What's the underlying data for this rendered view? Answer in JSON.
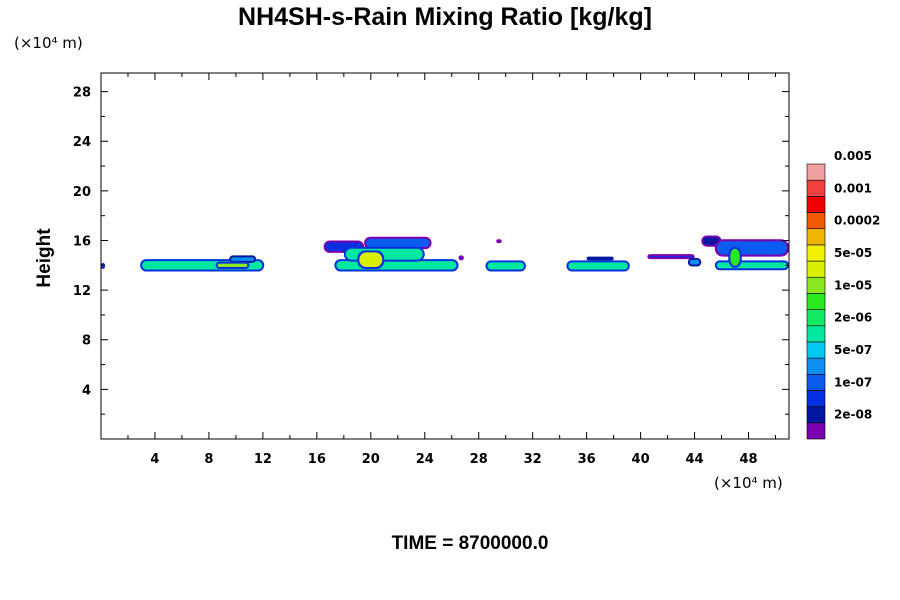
{
  "chart_data": {
    "type": "heatmap",
    "title": "NH4SH-s-Rain Mixing Ratio [kg/kg]",
    "xlabel": "",
    "ylabel": "Height",
    "x_unit": "(×10⁴ m)",
    "y_unit": "(×10⁴ m)",
    "xlim": [
      0,
      51
    ],
    "ylim": [
      0,
      29.5
    ],
    "x_ticks": [
      4,
      8,
      12,
      16,
      20,
      24,
      28,
      32,
      36,
      40,
      44,
      48
    ],
    "y_ticks": [
      4,
      8,
      12,
      16,
      20,
      24,
      28
    ],
    "grid": false,
    "colorbar": {
      "placement": "right",
      "colors": [
        "#7a00b0",
        "#0018a0",
        "#0030e0",
        "#0a5cf0",
        "#0a8ef0",
        "#00c8f0",
        "#00e8a0",
        "#14e864",
        "#28e81e",
        "#8ce81e",
        "#d8f000",
        "#f0f000",
        "#f0b400",
        "#f05a00",
        "#f00000",
        "#f04040",
        "#f0a0a0"
      ],
      "labels": [
        "2e-08",
        "1e-07",
        "5e-07",
        "2e-06",
        "1e-05",
        "5e-05",
        "0.0002",
        "0.001",
        "0.005"
      ]
    },
    "regions": [
      {
        "x": [
          0,
          0.3
        ],
        "y": [
          13.7,
          14.2
        ],
        "level": 6
      },
      {
        "x": [
          2.9,
          12.1
        ],
        "y": [
          13.5,
          14.5
        ],
        "level": 6
      },
      {
        "x": [
          9.5,
          11.5
        ],
        "y": [
          14.2,
          14.8
        ],
        "level": 4
      },
      {
        "x": [
          8.5,
          11
        ],
        "y": [
          13.7,
          14.3
        ],
        "level": 9
      },
      {
        "x": [
          16.5,
          19.5
        ],
        "y": [
          15.0,
          16.0
        ],
        "level": 2
      },
      {
        "x": [
          19.5,
          24.5
        ],
        "y": [
          15.3,
          16.3
        ],
        "level": 3
      },
      {
        "x": [
          17.3,
          26.5
        ],
        "y": [
          13.5,
          14.5
        ],
        "level": 6
      },
      {
        "x": [
          18,
          24
        ],
        "y": [
          14.3,
          15.5
        ],
        "level": 6
      },
      {
        "x": [
          19,
          21
        ],
        "y": [
          13.7,
          15.2
        ],
        "level": 10
      },
      {
        "x": [
          26.5,
          26.9
        ],
        "y": [
          14.4,
          14.8
        ],
        "level": 2
      },
      {
        "x": [
          29.3,
          29.7
        ],
        "y": [
          15.8,
          16.1
        ],
        "level": 1
      },
      {
        "x": [
          28.5,
          31.5
        ],
        "y": [
          13.5,
          14.4
        ],
        "level": 6
      },
      {
        "x": [
          34.5,
          39.2
        ],
        "y": [
          13.5,
          14.4
        ],
        "level": 6
      },
      {
        "x": [
          36,
          38
        ],
        "y": [
          14.4,
          14.7
        ],
        "level": 4
      },
      {
        "x": [
          40.5,
          44
        ],
        "y": [
          14.5,
          14.9
        ],
        "level": 2
      },
      {
        "x": [
          43.5,
          44.5
        ],
        "y": [
          13.9,
          14.6
        ],
        "level": 4
      },
      {
        "x": [
          44.5,
          46
        ],
        "y": [
          15.5,
          16.4
        ],
        "level": 1
      },
      {
        "x": [
          45.5,
          51
        ],
        "y": [
          14.7,
          16.1
        ],
        "level": 3
      },
      {
        "x": [
          45.5,
          51
        ],
        "y": [
          13.6,
          14.4
        ],
        "level": 6
      },
      {
        "x": [
          46.5,
          47.5
        ],
        "y": [
          13.8,
          15.5
        ],
        "level": 8
      }
    ]
  },
  "footer": {
    "time_label": "TIME = 8700000.0"
  }
}
